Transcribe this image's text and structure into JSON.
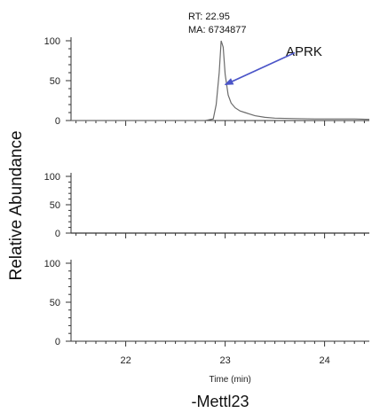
{
  "chart_data": {
    "type": "line",
    "xlabel": "Time (min)",
    "ylabel": "Relative Abundance",
    "caption": "-Mettl23",
    "xlim": [
      21.45,
      24.45
    ],
    "x_ticks": [
      22,
      23,
      24
    ],
    "x_tick_labels": [
      "22",
      "23",
      "24"
    ],
    "grid": false,
    "colors": {
      "trace": "#6b6b6b",
      "axis": "#333333",
      "arrow": "#4b55c8"
    },
    "panels": [
      {
        "ylim": [
          0,
          100
        ],
        "y_ticks": [
          0,
          50,
          100
        ],
        "y_tick_labels": [
          "0",
          "50",
          "100"
        ],
        "annotation": {
          "rt": "RT: 22.95",
          "ma": "MA: 6734877",
          "peak_label": "APRK",
          "peak_x": 22.95,
          "peak_y": 100,
          "arrow_from": [
            23.7,
            85
          ],
          "arrow_to": [
            23.0,
            45
          ]
        },
        "series": [
          {
            "x": [
              21.45,
              21.8,
              22.2,
              22.6,
              22.8,
              22.88,
              22.91,
              22.94,
              22.96,
              22.98,
              23.0,
              23.03,
              23.06,
              23.1,
              23.15,
              23.2,
              23.25,
              23.3,
              23.4,
              23.5,
              23.7,
              23.9,
              24.1,
              24.3,
              24.45
            ],
            "y": [
              0,
              0,
              0,
              0,
              0,
              2,
              20,
              60,
              100,
              92,
              58,
              32,
              22,
              16,
              12,
              10,
              8,
              6,
              4,
              3,
              2.5,
              2,
              2,
              2,
              1.5
            ]
          }
        ]
      },
      {
        "ylim": [
          0,
          100
        ],
        "y_ticks": [
          0,
          50,
          100
        ],
        "y_tick_labels": [
          "0",
          "50",
          "100"
        ],
        "series": [
          {
            "x": [
              21.45,
              24.45
            ],
            "y": [
              0,
              0
            ]
          }
        ]
      },
      {
        "ylim": [
          0,
          100
        ],
        "y_ticks": [
          0,
          50,
          100
        ],
        "y_tick_labels": [
          "0",
          "50",
          "100"
        ],
        "series": [
          {
            "x": [],
            "y": []
          }
        ]
      }
    ]
  }
}
